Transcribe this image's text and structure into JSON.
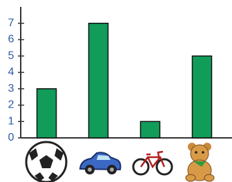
{
  "chart_data": {
    "type": "bar",
    "categories": [
      null,
      null,
      null,
      null
    ],
    "values": [
      3,
      7,
      1,
      5
    ],
    "color": "#129c5a",
    "ylim": [
      0,
      8
    ],
    "yticks": [
      0,
      1,
      2,
      3,
      4,
      5,
      6,
      7
    ]
  }
}
